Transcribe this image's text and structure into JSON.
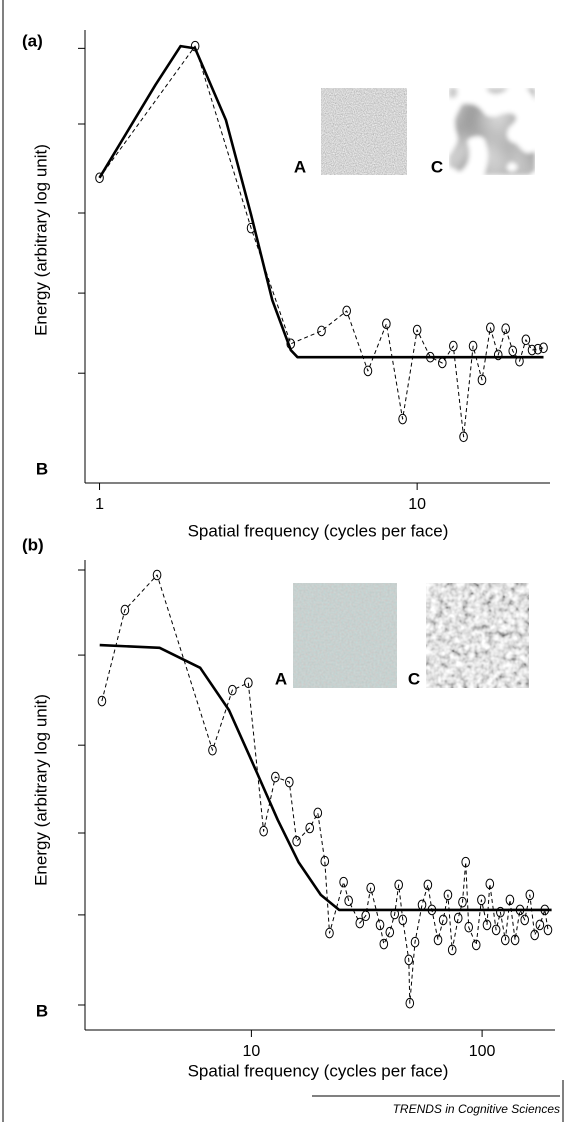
{
  "chart_data": [
    {
      "type": "line",
      "panel_label": "(a)",
      "xlabel": "Spatial frequency (cycles per face)",
      "ylabel": "Energy (arbitrary log unit)",
      "inset_labels": [
        "A",
        "C"
      ],
      "corner_label": "B",
      "xscale": "log",
      "xlim": [
        0.9,
        26.2
      ],
      "xticks": [
        1,
        10
      ],
      "ylim": [
        0,
        10
      ],
      "yticks": [
        2.4,
        4.2,
        6,
        8,
        9.7
      ],
      "series": [
        {
          "color": "#000000",
          "style": "dashed",
          "marker": "circle",
          "x": [
            1,
            2,
            3,
            4,
            5,
            6,
            7,
            8,
            9,
            10,
            11,
            12,
            13,
            14,
            15,
            16,
            17,
            18,
            19,
            20,
            21,
            22,
            23,
            24,
            25
          ],
          "values": [
            6.79,
            9.75,
            5.66,
            3.06,
            3.35,
            3.8,
            2.45,
            3.51,
            1.37,
            3.37,
            2.76,
            2.63,
            3.01,
            0.97,
            3.01,
            2.25,
            3.42,
            2.81,
            3.4,
            2.9,
            2.67,
            3.15,
            2.92,
            2.94,
            2.97
          ]
        },
        {
          "color": "#000000",
          "style": "solid",
          "marker": "none",
          "x": [
            1,
            1.5,
            1.8,
            2,
            2.5,
            3,
            3.5,
            4,
            4.2,
            25
          ],
          "values": [
            6.79,
            8.88,
            9.75,
            9.7,
            8.09,
            5.96,
            4.04,
            2.92,
            2.76,
            2.76
          ]
        }
      ]
    },
    {
      "type": "line",
      "panel_label": "(b)",
      "xlabel": "Spatial frequency (cycles per face)",
      "ylabel": "Energy (arbitrary log unit)",
      "inset_labels": [
        "A",
        "C"
      ],
      "corner_label": "B",
      "xscale": "log",
      "xlim": [
        1.9,
        207
      ],
      "xticks": [
        10,
        100
      ],
      "ylim": [
        0,
        10
      ],
      "yticks": [
        0.33,
        2.31,
        4.11,
        6.04,
        8.02,
        9.89
      ],
      "series": [
        {
          "color": "#000000",
          "style": "dashed",
          "marker": "circle",
          "x": [
            2.25,
            2.83,
            3.9,
            6.78,
            8.27,
            9.7,
            11.3,
            12.7,
            14.6,
            15.7,
            17.9,
            19.4,
            20.8,
            21.8,
            25.1,
            26.4,
            29.5,
            31.3,
            32.9,
            36.1,
            37.5,
            39.8,
            41.8,
            43.5,
            45.3,
            48.1,
            48.6,
            51.2,
            54.9,
            58.2,
            60.6,
            64.4,
            67.8,
            71.1,
            74.2,
            78.8,
            82.2,
            84.9,
            87.5,
            94.3,
            99.3,
            105,
            108,
            115,
            120,
            126,
            132,
            139,
            146,
            153,
            161,
            169,
            178,
            187,
            193
          ],
          "values": [
            7.01,
            9.01,
            9.78,
            5.93,
            7.25,
            7.41,
            4.15,
            5.34,
            5.23,
            3.93,
            4.22,
            4.55,
            3.49,
            1.91,
            3.03,
            2.62,
            2.13,
            2.29,
            2.9,
            2.09,
            1.67,
            1.93,
            2.33,
            2.97,
            2.2,
            1.32,
            0.37,
            1.71,
            2.53,
            2.97,
            2.42,
            1.76,
            2.2,
            2.75,
            1.54,
            2.24,
            2.59,
            3.47,
            2.04,
            1.65,
            2.64,
            2.09,
            2.99,
            1.98,
            2.37,
            1.76,
            2.64,
            1.76,
            2.42,
            2.2,
            2.75,
            1.87,
            2.09,
            2.42,
            1.98
          ]
        },
        {
          "color": "#000000",
          "style": "solid",
          "marker": "none",
          "x": [
            2.2,
            4,
            6,
            8,
            10,
            13,
            16,
            20,
            24,
            200
          ],
          "values": [
            8.24,
            8.18,
            7.74,
            6.81,
            5.71,
            4.4,
            3.47,
            2.75,
            2.42,
            2.42
          ]
        }
      ]
    }
  ],
  "footer": "TRENDS in Cognitive Sciences"
}
